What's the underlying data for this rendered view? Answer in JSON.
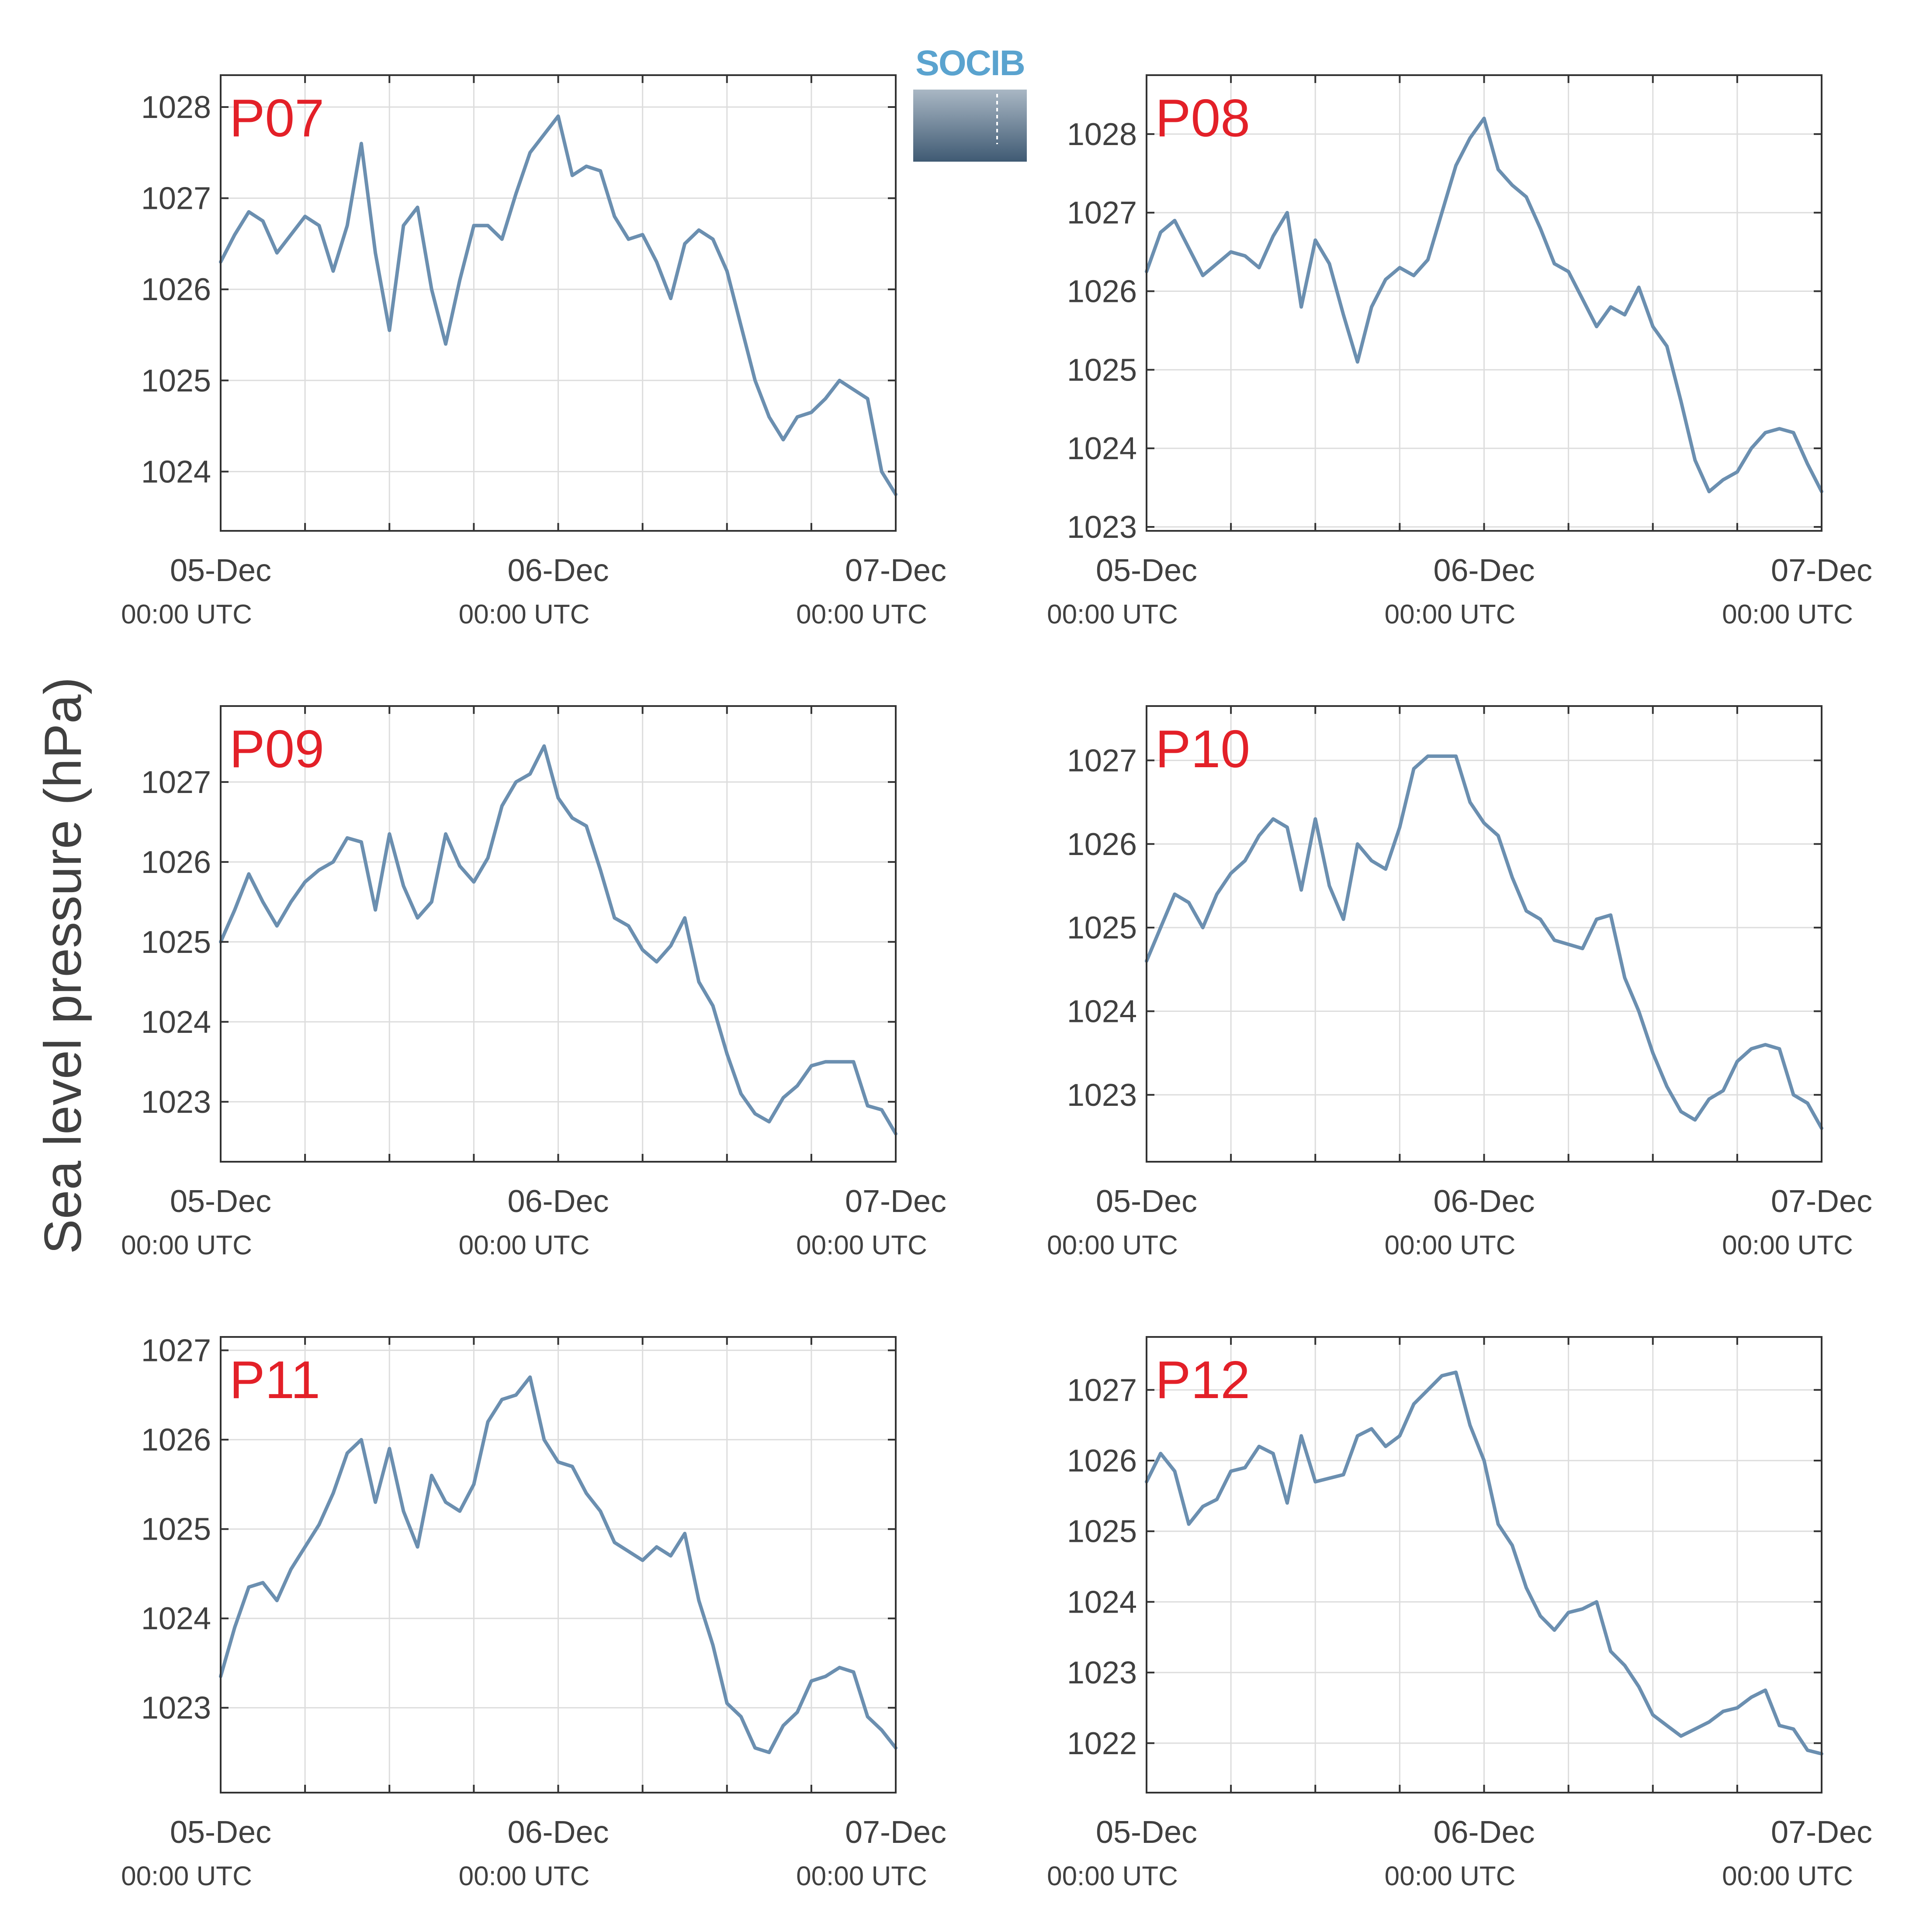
{
  "figure": {
    "ylabel": "Sea level pressure (hPa)",
    "logo_text": "SOCIB"
  },
  "colors": {
    "line": "#6b8fb0",
    "station_label": "#e32028",
    "axis": "#333333",
    "grid": "#dddddd",
    "text": "#404040",
    "logo_text": "#5aa3cf",
    "logo_top": "#a9b7c4",
    "logo_bottom": "#3f5a73"
  },
  "chart_data": [
    {
      "type": "line",
      "station": "P07",
      "x_ticks": [
        {
          "main": "05-Dec",
          "sub": "00:00 UTC"
        },
        {
          "main": "06-Dec",
          "sub": "00:00 UTC"
        },
        {
          "main": "07-Dec",
          "sub": "00:00 UTC"
        }
      ],
      "x_range_hours": [
        0,
        48
      ],
      "ylim": [
        1023.35,
        1028.35
      ],
      "yticks": [
        1024,
        1025,
        1026,
        1027,
        1028
      ],
      "grid": true,
      "x": [
        0,
        1,
        2,
        3,
        4,
        5,
        6,
        7,
        8,
        9,
        10,
        11,
        12,
        13,
        14,
        15,
        16,
        17,
        18,
        19,
        20,
        21,
        22,
        23,
        24,
        25,
        26,
        27,
        28,
        29,
        30,
        31,
        32,
        33,
        34,
        35,
        36,
        37,
        38,
        39,
        40,
        41,
        42,
        43,
        44,
        45,
        46,
        47,
        48
      ],
      "y": [
        1026.3,
        1026.6,
        1026.85,
        1026.75,
        1026.4,
        1026.6,
        1026.8,
        1026.7,
        1026.2,
        1026.7,
        1027.6,
        1026.4,
        1025.55,
        1026.7,
        1026.9,
        1026.0,
        1025.4,
        1026.1,
        1026.7,
        1026.7,
        1026.55,
        1027.05,
        1027.5,
        1027.7,
        1027.9,
        1027.25,
        1027.35,
        1027.3,
        1026.8,
        1026.55,
        1026.6,
        1026.3,
        1025.9,
        1026.5,
        1026.65,
        1026.55,
        1026.2,
        1025.6,
        1025.0,
        1024.6,
        1024.35,
        1024.6,
        1024.65,
        1024.8,
        1025.0,
        1024.9,
        1024.8,
        1024.0,
        1023.75
      ]
    },
    {
      "type": "line",
      "station": "P08",
      "x_ticks": [
        {
          "main": "05-Dec",
          "sub": "00:00 UTC"
        },
        {
          "main": "06-Dec",
          "sub": "00:00 UTC"
        },
        {
          "main": "07-Dec",
          "sub": "00:00 UTC"
        }
      ],
      "x_range_hours": [
        0,
        48
      ],
      "ylim": [
        1022.95,
        1028.75
      ],
      "yticks": [
        1023,
        1024,
        1025,
        1026,
        1027,
        1028
      ],
      "grid": true,
      "x": [
        0,
        1,
        2,
        3,
        4,
        5,
        6,
        7,
        8,
        9,
        10,
        11,
        12,
        13,
        14,
        15,
        16,
        17,
        18,
        19,
        20,
        21,
        22,
        23,
        24,
        25,
        26,
        27,
        28,
        29,
        30,
        31,
        32,
        33,
        34,
        35,
        36,
        37,
        38,
        39,
        40,
        41,
        42,
        43,
        44,
        45,
        46,
        47,
        48
      ],
      "y": [
        1026.25,
        1026.75,
        1026.9,
        1026.55,
        1026.2,
        1026.35,
        1026.5,
        1026.45,
        1026.3,
        1026.7,
        1027.0,
        1025.8,
        1026.65,
        1026.35,
        1025.7,
        1025.1,
        1025.8,
        1026.15,
        1026.3,
        1026.2,
        1026.4,
        1027.0,
        1027.6,
        1027.95,
        1028.2,
        1027.55,
        1027.35,
        1027.2,
        1026.8,
        1026.35,
        1026.25,
        1025.9,
        1025.55,
        1025.8,
        1025.7,
        1026.05,
        1025.55,
        1025.3,
        1024.6,
        1023.85,
        1023.45,
        1023.6,
        1023.7,
        1024.0,
        1024.2,
        1024.25,
        1024.2,
        1023.8,
        1023.45
      ]
    },
    {
      "type": "line",
      "station": "P09",
      "x_ticks": [
        {
          "main": "05-Dec",
          "sub": "00:00 UTC"
        },
        {
          "main": "06-Dec",
          "sub": "00:00 UTC"
        },
        {
          "main": "07-Dec",
          "sub": "00:00 UTC"
        }
      ],
      "x_range_hours": [
        0,
        48
      ],
      "ylim": [
        1022.25,
        1027.95
      ],
      "yticks": [
        1023,
        1024,
        1025,
        1026,
        1027
      ],
      "grid": true,
      "x": [
        0,
        1,
        2,
        3,
        4,
        5,
        6,
        7,
        8,
        9,
        10,
        11,
        12,
        13,
        14,
        15,
        16,
        17,
        18,
        19,
        20,
        21,
        22,
        23,
        24,
        25,
        26,
        27,
        28,
        29,
        30,
        31,
        32,
        33,
        34,
        35,
        36,
        37,
        38,
        39,
        40,
        41,
        42,
        43,
        44,
        45,
        46,
        47,
        48
      ],
      "y": [
        1025.0,
        1025.4,
        1025.85,
        1025.5,
        1025.2,
        1025.5,
        1025.75,
        1025.9,
        1026.0,
        1026.3,
        1026.25,
        1025.4,
        1026.35,
        1025.7,
        1025.3,
        1025.5,
        1026.35,
        1025.95,
        1025.75,
        1026.05,
        1026.7,
        1027.0,
        1027.1,
        1027.45,
        1026.8,
        1026.55,
        1026.45,
        1025.9,
        1025.3,
        1025.2,
        1024.9,
        1024.75,
        1024.95,
        1025.3,
        1024.5,
        1024.2,
        1023.6,
        1023.1,
        1022.85,
        1022.75,
        1023.05,
        1023.2,
        1023.45,
        1023.5,
        1023.5,
        1023.5,
        1022.95,
        1022.9,
        1022.6
      ]
    },
    {
      "type": "line",
      "station": "P10",
      "x_ticks": [
        {
          "main": "05-Dec",
          "sub": "00:00 UTC"
        },
        {
          "main": "06-Dec",
          "sub": "00:00 UTC"
        },
        {
          "main": "07-Dec",
          "sub": "00:00 UTC"
        }
      ],
      "x_range_hours": [
        0,
        48
      ],
      "ylim": [
        1022.2,
        1027.65
      ],
      "yticks": [
        1023,
        1024,
        1025,
        1026,
        1027
      ],
      "grid": true,
      "x": [
        0,
        1,
        2,
        3,
        4,
        5,
        6,
        7,
        8,
        9,
        10,
        11,
        12,
        13,
        14,
        15,
        16,
        17,
        18,
        19,
        20,
        21,
        22,
        23,
        24,
        25,
        26,
        27,
        28,
        29,
        30,
        31,
        32,
        33,
        34,
        35,
        36,
        37,
        38,
        39,
        40,
        41,
        42,
        43,
        44,
        45,
        46,
        47,
        48
      ],
      "y": [
        1024.6,
        1025.0,
        1025.4,
        1025.3,
        1025.0,
        1025.4,
        1025.65,
        1025.8,
        1026.1,
        1026.3,
        1026.2,
        1025.45,
        1026.3,
        1025.5,
        1025.1,
        1026.0,
        1025.8,
        1025.7,
        1026.2,
        1026.9,
        1027.05,
        1027.05,
        1027.05,
        1026.5,
        1026.25,
        1026.1,
        1025.6,
        1025.2,
        1025.1,
        1024.85,
        1024.8,
        1024.75,
        1025.1,
        1025.15,
        1024.4,
        1024.0,
        1023.5,
        1023.1,
        1022.8,
        1022.7,
        1022.95,
        1023.05,
        1023.4,
        1023.55,
        1023.6,
        1023.55,
        1023.0,
        1022.9,
        1022.6
      ]
    },
    {
      "type": "line",
      "station": "P11",
      "x_ticks": [
        {
          "main": "05-Dec",
          "sub": "00:00 UTC"
        },
        {
          "main": "06-Dec",
          "sub": "00:00 UTC"
        },
        {
          "main": "07-Dec",
          "sub": "00:00 UTC"
        }
      ],
      "x_range_hours": [
        0,
        48
      ],
      "ylim": [
        1022.05,
        1027.15
      ],
      "yticks": [
        1023,
        1024,
        1025,
        1026,
        1027
      ],
      "grid": true,
      "x": [
        0,
        1,
        2,
        3,
        4,
        5,
        6,
        7,
        8,
        9,
        10,
        11,
        12,
        13,
        14,
        15,
        16,
        17,
        18,
        19,
        20,
        21,
        22,
        23,
        24,
        25,
        26,
        27,
        28,
        29,
        30,
        31,
        32,
        33,
        34,
        35,
        36,
        37,
        38,
        39,
        40,
        41,
        42,
        43,
        44,
        45,
        46,
        47,
        48
      ],
      "y": [
        1023.35,
        1023.9,
        1024.35,
        1024.4,
        1024.2,
        1024.55,
        1024.8,
        1025.05,
        1025.4,
        1025.85,
        1026.0,
        1025.3,
        1025.9,
        1025.2,
        1024.8,
        1025.6,
        1025.3,
        1025.2,
        1025.5,
        1026.2,
        1026.45,
        1026.5,
        1026.7,
        1026.0,
        1025.75,
        1025.7,
        1025.4,
        1025.2,
        1024.85,
        1024.75,
        1024.65,
        1024.8,
        1024.7,
        1024.95,
        1024.2,
        1023.7,
        1023.05,
        1022.9,
        1022.55,
        1022.5,
        1022.8,
        1022.95,
        1023.3,
        1023.35,
        1023.45,
        1023.4,
        1022.9,
        1022.75,
        1022.55
      ]
    },
    {
      "type": "line",
      "station": "P12",
      "x_ticks": [
        {
          "main": "05-Dec",
          "sub": "00:00 UTC"
        },
        {
          "main": "06-Dec",
          "sub": "00:00 UTC"
        },
        {
          "main": "07-Dec",
          "sub": "00:00 UTC"
        }
      ],
      "x_range_hours": [
        0,
        48
      ],
      "ylim": [
        1021.3,
        1027.75
      ],
      "yticks": [
        1022,
        1023,
        1024,
        1025,
        1026,
        1027
      ],
      "grid": true,
      "x": [
        0,
        1,
        2,
        3,
        4,
        5,
        6,
        7,
        8,
        9,
        10,
        11,
        12,
        13,
        14,
        15,
        16,
        17,
        18,
        19,
        20,
        21,
        22,
        23,
        24,
        25,
        26,
        27,
        28,
        29,
        30,
        31,
        32,
        33,
        34,
        35,
        36,
        37,
        38,
        39,
        40,
        41,
        42,
        43,
        44,
        45,
        46,
        47,
        48
      ],
      "y": [
        1025.7,
        1026.1,
        1025.85,
        1025.1,
        1025.35,
        1025.45,
        1025.85,
        1025.9,
        1026.2,
        1026.1,
        1025.4,
        1026.35,
        1025.7,
        1025.75,
        1025.8,
        1026.35,
        1026.45,
        1026.2,
        1026.35,
        1026.8,
        1027.0,
        1027.2,
        1027.25,
        1026.5,
        1026.0,
        1025.1,
        1024.8,
        1024.2,
        1023.8,
        1023.6,
        1023.85,
        1023.9,
        1024.0,
        1023.3,
        1023.1,
        1022.8,
        1022.4,
        1022.25,
        1022.1,
        1022.2,
        1022.3,
        1022.45,
        1022.5,
        1022.65,
        1022.75,
        1022.25,
        1022.2,
        1021.9,
        1021.85
      ]
    }
  ]
}
